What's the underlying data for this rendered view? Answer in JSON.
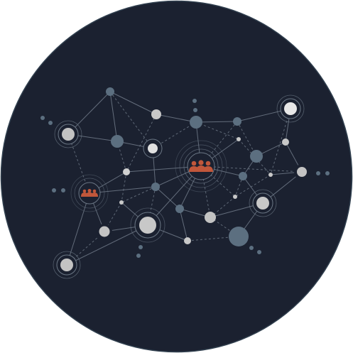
{
  "diagram": {
    "kind": "network-graph",
    "colors": {
      "background": "#1b2130",
      "border": "#31404f",
      "edge": "#7b8694",
      "node_light": "#c3c3c3",
      "node_blue": "#5c6f80",
      "node_white": "#e7e7e7",
      "hub": "#c1573b",
      "ring": "#6b7785"
    },
    "icons": [
      "people-group-icon",
      "people-group-icon"
    ],
    "nodes": [
      {
        "id": "n1",
        "role": "ringed-node"
      },
      {
        "id": "n2",
        "role": "node"
      },
      {
        "id": "n3",
        "role": "node"
      },
      {
        "id": "n4",
        "role": "node"
      },
      {
        "id": "n5",
        "role": "ringed-node"
      },
      {
        "id": "n6",
        "role": "node"
      },
      {
        "id": "n7",
        "role": "node"
      },
      {
        "id": "n8",
        "role": "node"
      },
      {
        "id": "n9",
        "role": "ringed-node"
      },
      {
        "id": "n10",
        "role": "hub-people"
      },
      {
        "id": "n11",
        "role": "node"
      },
      {
        "id": "n12",
        "role": "node"
      },
      {
        "id": "n13",
        "role": "node"
      },
      {
        "id": "n14",
        "role": "node"
      },
      {
        "id": "n15",
        "role": "hub-people"
      },
      {
        "id": "n16",
        "role": "node"
      },
      {
        "id": "n17",
        "role": "node"
      },
      {
        "id": "n18",
        "role": "node"
      },
      {
        "id": "n19",
        "role": "node"
      },
      {
        "id": "n20",
        "role": "node"
      },
      {
        "id": "n21",
        "role": "ringed-node"
      },
      {
        "id": "n22",
        "role": "node"
      },
      {
        "id": "n23",
        "role": "ringed-node"
      },
      {
        "id": "n24",
        "role": "node"
      },
      {
        "id": "n25",
        "role": "node"
      },
      {
        "id": "n26",
        "role": "node"
      },
      {
        "id": "n27",
        "role": "node"
      },
      {
        "id": "n28",
        "role": "ringed-node"
      },
      {
        "id": "n29",
        "role": "node"
      }
    ]
  }
}
